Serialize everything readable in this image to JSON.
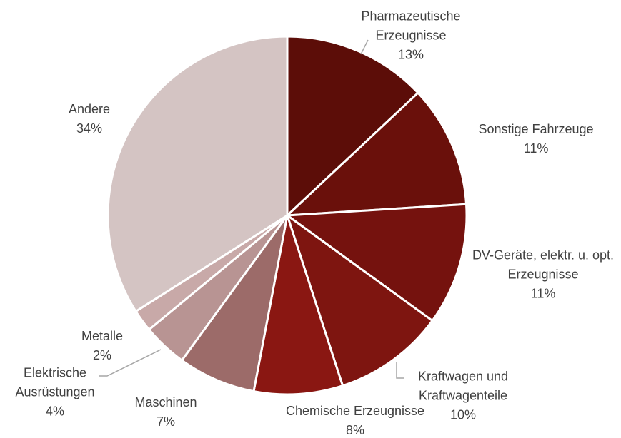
{
  "chart_data": {
    "type": "pie",
    "categories": [
      "Pharmazeutische Erzeugnisse",
      "Sonstige Fahrzeuge",
      "DV-Geräte, elektr. u. opt. Erzeugnisse",
      "Kraftwagen und Kraftwagenteile",
      "Chemische Erzeugnisse",
      "Maschinen",
      "Elektrische Ausrüstungen",
      "Metalle",
      "Andere"
    ],
    "values": [
      13,
      11,
      11,
      10,
      8,
      7,
      4,
      2,
      34
    ],
    "value_labels": [
      "13%",
      "11%",
      "11%",
      "10%",
      "8%",
      "7%",
      "4%",
      "2%",
      "34%"
    ],
    "colors": [
      "#5c0d08",
      "#6a100b",
      "#75120e",
      "#7e1510",
      "#8a1712",
      "#9c6b69",
      "#b89493",
      "#c8a9a8",
      "#d4c4c3"
    ]
  }
}
